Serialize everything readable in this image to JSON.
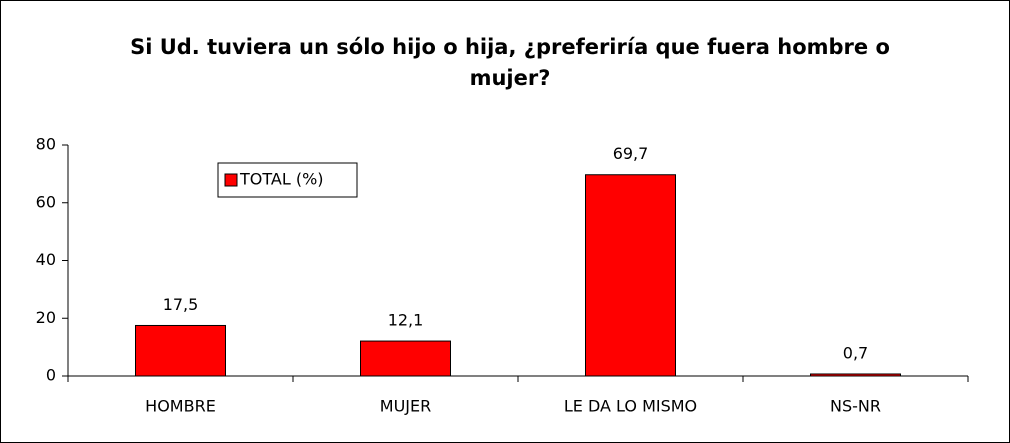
{
  "chart_data": {
    "type": "bar",
    "title": "Si Ud. tuviera un sólo hijo o hija, ¿preferiría que fuera hombre o mujer?",
    "categories": [
      "HOMBRE",
      "MUJER",
      "LE DA LO MISMO",
      "NS-NR"
    ],
    "series": [
      {
        "name": "TOTAL (%)",
        "color": "#ff0000",
        "values": [
          17.5,
          12.1,
          69.7,
          0.7
        ],
        "value_labels": [
          "17,5",
          "12,1",
          "69,7",
          "0,7"
        ]
      }
    ],
    "ylim": [
      0,
      80
    ],
    "yticks": [
      0,
      20,
      40,
      60,
      80
    ],
    "grid": false,
    "legend": "upper left"
  }
}
